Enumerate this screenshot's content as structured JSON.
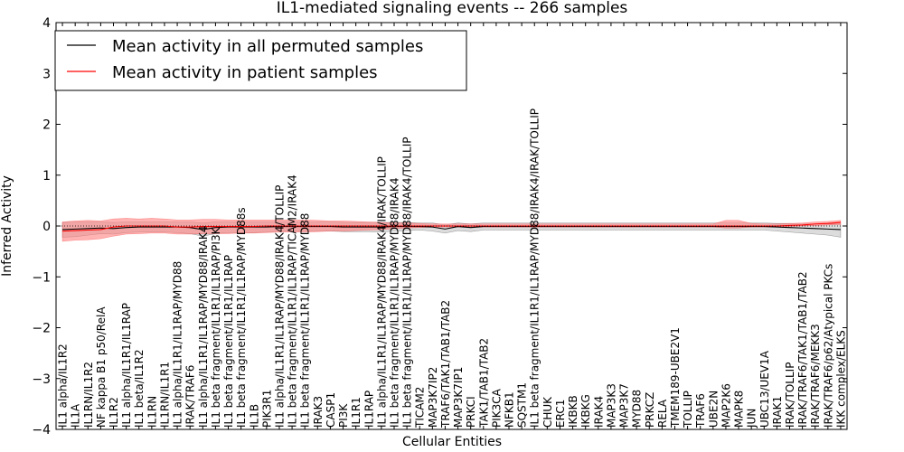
{
  "chart_data": {
    "type": "line",
    "title": "IL1-mediated signaling events -- 266 samples",
    "xlabel": "Cellular Entities",
    "ylabel": "Inferred Activity",
    "ylim": [
      -4,
      4
    ],
    "yticks": [
      -4,
      -3,
      -2,
      -1,
      0,
      1,
      2,
      3,
      4
    ],
    "ytick_labels": [
      "−4",
      "−3",
      "−2",
      "−1",
      "0",
      "1",
      "2",
      "3",
      "4"
    ],
    "grid": false,
    "legend_position": "top-left",
    "categories": [
      "IL1 alpha/IL1R2",
      "IL1A",
      "IL1RN/IL1R2",
      "NF kappa B1 p50/RelA",
      "IL1R2",
      "IL1 alpha/IL1R1/IL1RAP",
      "IL1 beta/IL1R2",
      "IL1RN",
      "IL1RN/IL1R1",
      "IL1 alpha/IL1R1/IL1RAP/MYD88",
      "IRAK/TRAF6",
      "IL1 alpha/IL1R1/IL1RAP/MYD88/IRAK4",
      "IL1 beta fragment/IL1R1/IL1RAP/PI3K",
      "IL1 beta fragment/IL1R1/IL1RAP",
      "IL1 beta fragment/IL1R1/IL1RAP/MYD88s",
      "IL1B",
      "PIK3R1",
      "IL1 alpha/IL1R1/IL1RAP/MYD88/IRAK4/TOLLIP",
      "IL1 beta fragment/IL1R1/IL1RAP/TICAM2/IRAK4",
      "IL1 beta fragment/IL1R1/IL1RAP/MYD88",
      "IRAK3",
      "CASP1",
      "PI3K",
      "IL1R1",
      "IL1RAP",
      "IL1 alpha/IL1R1/IL1RAP/MYD88/IRAK4/IRAK/TOLLIP",
      "IL1 beta fragment/IL1R1/IL1RAP/MYD88/IRAK4",
      "IL1 beta fragment/IL1R1/IL1RAP/MYD88/IRAK4/TOLLIP",
      "TICAM2",
      "MAP3K7IP2",
      "TRAF6/TAK1/TAB1/TAB2",
      "MAP3K7IP1",
      "PRKCI",
      "TAK1/TAB1/TAB2",
      "PIK3CA",
      "NFKB1",
      "SQSTM1",
      "IL1 beta fragment/IL1R1/IL1RAP/MYD88/IRAK4/IRAK/TOLLIP",
      "CHUK",
      "ERC1",
      "IKBKB",
      "IKBKG",
      "IRAK4",
      "MAP3K3",
      "MAP3K7",
      "MYD88",
      "PRKCZ",
      "RELA",
      "TMEM189-UBE2V1",
      "TOLLIP",
      "TRAF6",
      "UBE2N",
      "MAP2K6",
      "MAPK8",
      "JUN",
      "UBC13/UEV1A",
      "IRAK1",
      "IRAK/TOLLIP",
      "IRAK/TRAF6/TAK1/TAB1/TAB2",
      "IRAK/TRAF6/MEKK3",
      "IRAK/TRAF6/p62/Atypical PKCs",
      "IKK complex/ELKS"
    ],
    "series": [
      {
        "name": "Mean activity in all permuted samples",
        "color": "#000000",
        "values": [
          -0.07,
          -0.06,
          -0.05,
          -0.04,
          -0.05,
          -0.03,
          -0.02,
          -0.02,
          -0.02,
          -0.02,
          -0.03,
          -0.07,
          -0.03,
          -0.02,
          -0.02,
          -0.02,
          -0.02,
          -0.01,
          -0.01,
          -0.01,
          -0.01,
          -0.01,
          -0.02,
          -0.02,
          -0.02,
          -0.02,
          -0.01,
          -0.01,
          -0.01,
          -0.02,
          -0.06,
          -0.01,
          -0.03,
          -0.01,
          -0.01,
          -0.01,
          -0.01,
          -0.01,
          -0.01,
          -0.01,
          -0.01,
          -0.01,
          -0.01,
          -0.01,
          -0.01,
          -0.01,
          -0.01,
          -0.01,
          -0.01,
          -0.01,
          -0.01,
          -0.01,
          -0.01,
          -0.01,
          -0.01,
          -0.01,
          -0.02,
          -0.03,
          -0.04,
          -0.05,
          -0.06,
          -0.07
        ],
        "band_low": [
          -0.22,
          -0.21,
          -0.18,
          -0.15,
          -0.16,
          -0.13,
          -0.12,
          -0.12,
          -0.12,
          -0.13,
          -0.15,
          -0.2,
          -0.15,
          -0.13,
          -0.13,
          -0.13,
          -0.12,
          -0.1,
          -0.1,
          -0.1,
          -0.1,
          -0.1,
          -0.11,
          -0.11,
          -0.11,
          -0.12,
          -0.1,
          -0.09,
          -0.08,
          -0.1,
          -0.14,
          -0.09,
          -0.11,
          -0.08,
          -0.08,
          -0.08,
          -0.08,
          -0.08,
          -0.08,
          -0.08,
          -0.08,
          -0.08,
          -0.08,
          -0.08,
          -0.08,
          -0.08,
          -0.08,
          -0.08,
          -0.08,
          -0.08,
          -0.08,
          -0.08,
          -0.08,
          -0.08,
          -0.08,
          -0.08,
          -0.1,
          -0.12,
          -0.14,
          -0.16,
          -0.18,
          -0.22
        ],
        "band_high": [
          0.07,
          0.08,
          0.08,
          0.08,
          0.07,
          0.08,
          0.08,
          0.08,
          0.08,
          0.08,
          0.08,
          0.06,
          0.08,
          0.08,
          0.08,
          0.08,
          0.08,
          0.08,
          0.08,
          0.08,
          0.08,
          0.08,
          0.07,
          0.07,
          0.07,
          0.07,
          0.07,
          0.07,
          0.06,
          0.06,
          0.02,
          0.06,
          0.04,
          0.06,
          0.06,
          0.06,
          0.06,
          0.06,
          0.06,
          0.06,
          0.06,
          0.06,
          0.06,
          0.06,
          0.06,
          0.06,
          0.06,
          0.06,
          0.06,
          0.06,
          0.06,
          0.06,
          0.06,
          0.06,
          0.06,
          0.06,
          0.05,
          0.05,
          0.04,
          0.04,
          0.04,
          0.04
        ]
      },
      {
        "name": "Mean activity in patient samples",
        "color": "#ff0000",
        "values": [
          -0.1,
          -0.09,
          -0.08,
          -0.07,
          -0.02,
          0,
          0,
          0,
          0,
          -0.02,
          -0.02,
          -0.01,
          -0.01,
          -0.01,
          -0.01,
          -0.01,
          0,
          0,
          0,
          0,
          0,
          0,
          0,
          0,
          0,
          0,
          0,
          0,
          0,
          0,
          0,
          0,
          0,
          0,
          0,
          0,
          0,
          0,
          0,
          0,
          0,
          0,
          0,
          0,
          0,
          0,
          0,
          0,
          0,
          0,
          0,
          0,
          0,
          0,
          0,
          0,
          0,
          0.01,
          0.02,
          0.04,
          0.05,
          0.07
        ],
        "band_low": [
          -0.3,
          -0.28,
          -0.27,
          -0.25,
          -0.2,
          -0.16,
          -0.15,
          -0.14,
          -0.14,
          -0.16,
          -0.16,
          -0.15,
          -0.15,
          -0.15,
          -0.14,
          -0.14,
          -0.13,
          -0.12,
          -0.12,
          -0.12,
          -0.11,
          -0.1,
          -0.1,
          -0.09,
          -0.08,
          -0.07,
          -0.05,
          -0.04,
          -0.03,
          -0.02,
          -0.02,
          -0.02,
          -0.02,
          -0.02,
          -0.02,
          -0.02,
          -0.02,
          -0.02,
          -0.02,
          -0.02,
          -0.02,
          -0.02,
          -0.02,
          -0.02,
          -0.02,
          -0.02,
          -0.02,
          -0.02,
          -0.02,
          -0.02,
          -0.02,
          -0.02,
          -0.04,
          -0.04,
          -0.02,
          -0.02,
          -0.02,
          -0.01,
          0,
          0.01,
          0.02,
          0.03
        ],
        "band_high": [
          0.08,
          0.1,
          0.11,
          0.1,
          0.14,
          0.15,
          0.14,
          0.15,
          0.14,
          0.12,
          0.12,
          0.13,
          0.13,
          0.12,
          0.12,
          0.12,
          0.12,
          0.12,
          0.12,
          0.12,
          0.11,
          0.1,
          0.1,
          0.09,
          0.08,
          0.07,
          0.06,
          0.06,
          0.05,
          0.04,
          0.04,
          0.04,
          0.04,
          0.04,
          0.04,
          0.04,
          0.04,
          0.04,
          0.04,
          0.04,
          0.04,
          0.04,
          0.04,
          0.04,
          0.04,
          0.04,
          0.04,
          0.04,
          0.04,
          0.04,
          0.04,
          0.04,
          0.11,
          0.11,
          0.05,
          0.04,
          0.04,
          0.05,
          0.06,
          0.08,
          0.09,
          0.11
        ]
      }
    ],
    "colors": {
      "perm_band_fill": "#bfbfbf",
      "patient_band_fill": "#ff8080"
    }
  }
}
